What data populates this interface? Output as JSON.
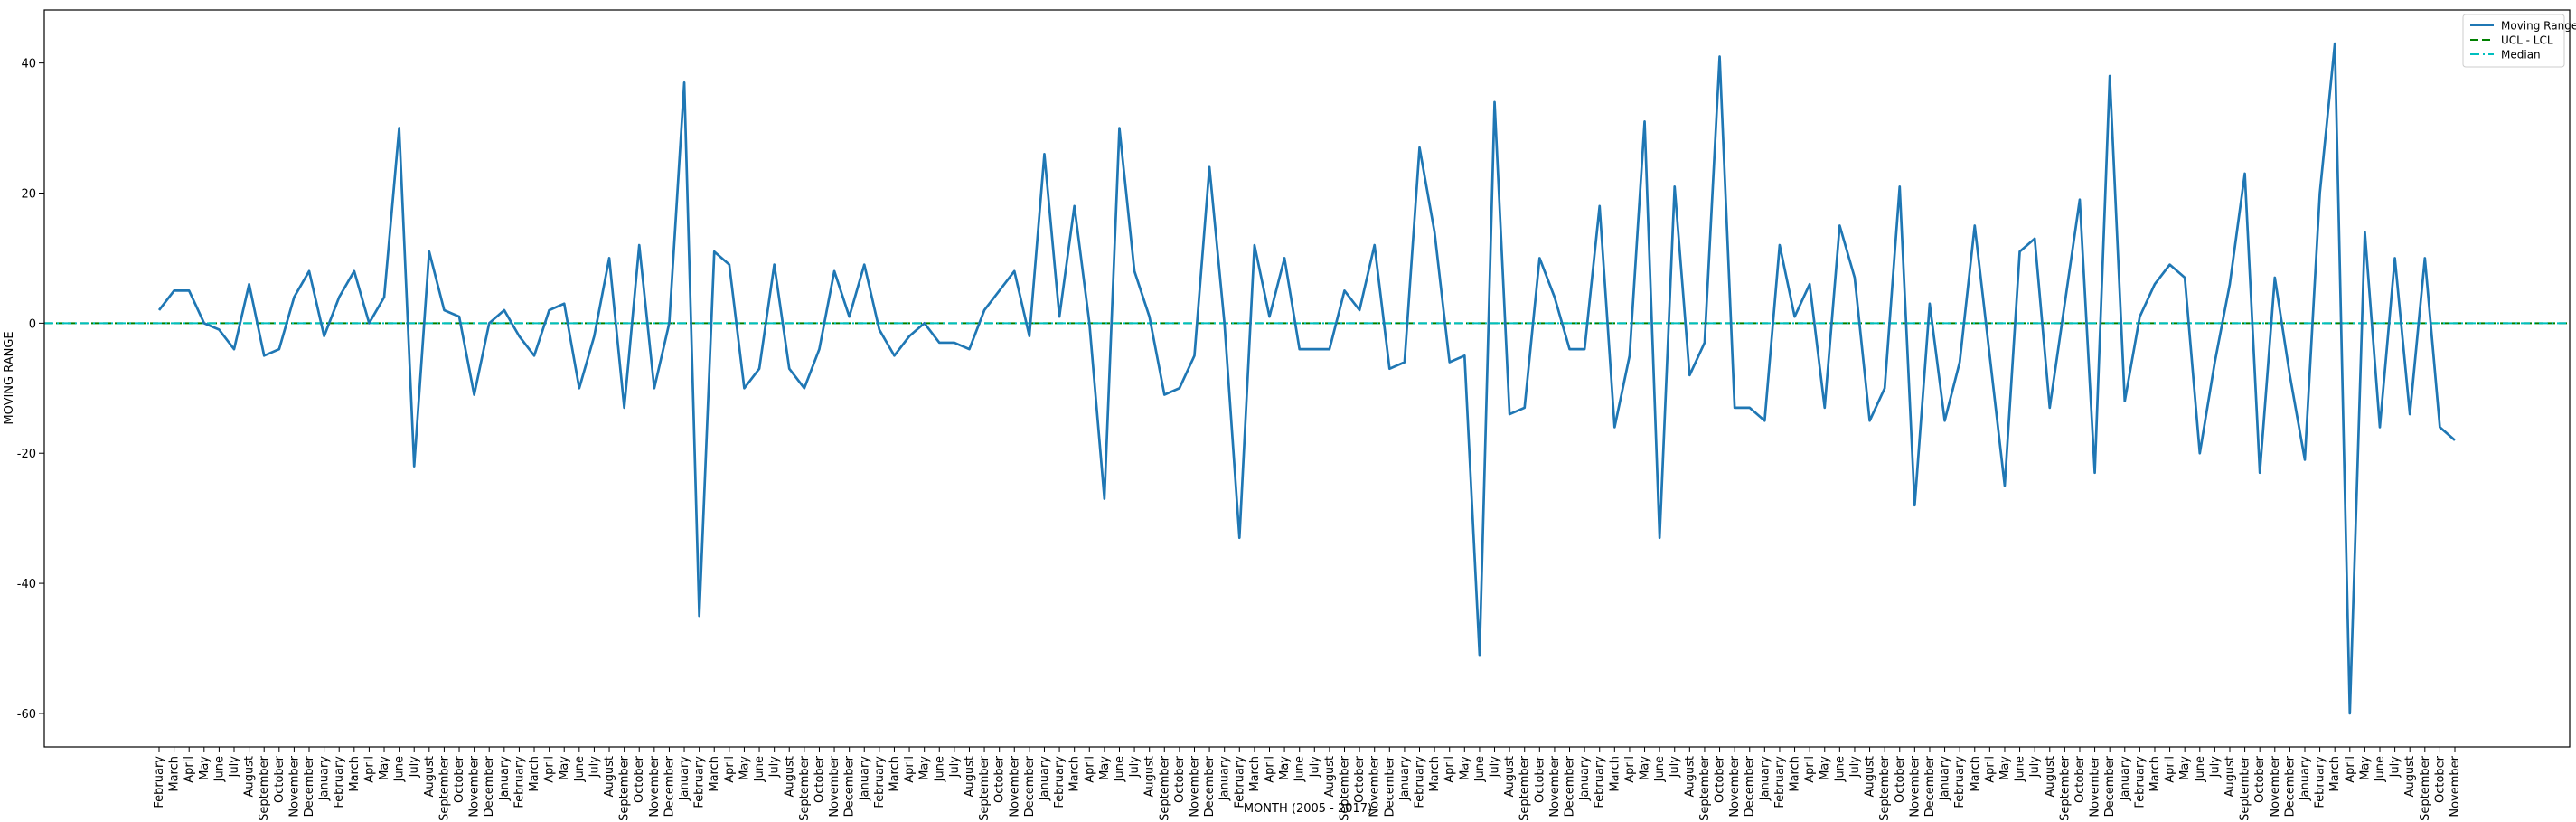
{
  "chart_data": {
    "type": "line",
    "x_label": "MONTH (2005 - 2017)",
    "y_label": "MOVING RANGE",
    "categories": [
      "February",
      "March",
      "April",
      "May",
      "June",
      "July",
      "August",
      "September",
      "October",
      "November",
      "December",
      "January",
      "February",
      "March",
      "April",
      "May",
      "June",
      "July",
      "August",
      "September",
      "October",
      "November",
      "December",
      "January",
      "February",
      "March",
      "April",
      "May",
      "June",
      "July",
      "August",
      "September",
      "October",
      "November",
      "December",
      "January",
      "February",
      "March",
      "April",
      "May",
      "June",
      "July",
      "August",
      "September",
      "October",
      "November",
      "December",
      "January",
      "February",
      "March",
      "April",
      "May",
      "June",
      "July",
      "August",
      "September",
      "October",
      "November",
      "December",
      "January",
      "February",
      "March",
      "April",
      "May",
      "June",
      "July",
      "August",
      "September",
      "October",
      "November",
      "December",
      "January",
      "February",
      "March",
      "April",
      "May",
      "June",
      "July",
      "August",
      "September",
      "October",
      "November",
      "December",
      "January",
      "February",
      "March",
      "April",
      "May",
      "June",
      "July",
      "August",
      "September",
      "October",
      "November",
      "December",
      "January",
      "February",
      "March",
      "April",
      "May",
      "June",
      "July",
      "August",
      "September",
      "October",
      "November",
      "December",
      "January",
      "February",
      "March",
      "April",
      "May",
      "June",
      "July",
      "August",
      "September",
      "October",
      "November",
      "December",
      "January",
      "February",
      "March",
      "April",
      "May",
      "June",
      "July",
      "August",
      "September",
      "October",
      "November",
      "December",
      "January",
      "February",
      "March",
      "April",
      "May",
      "June",
      "July",
      "August",
      "September",
      "October",
      "November",
      "December",
      "January",
      "February",
      "March",
      "April",
      "May",
      "June",
      "July",
      "August",
      "September",
      "October",
      "November"
    ],
    "series": [
      {
        "name": "Moving Range",
        "color": "#1f77b4",
        "values": [
          2,
          5,
          5,
          0,
          -1,
          -4,
          6,
          -5,
          -4,
          4,
          8,
          -2,
          4,
          8,
          0,
          4,
          30,
          -22,
          11,
          2,
          1,
          -11,
          0,
          2,
          -2,
          -5,
          2,
          3,
          -10,
          -2,
          10,
          -13,
          12,
          -10,
          0,
          37,
          -45,
          11,
          9,
          -10,
          -7,
          9,
          -7,
          -10,
          -4,
          8,
          1,
          9,
          -1,
          -5,
          -2,
          0,
          -3,
          -3,
          -4,
          2,
          5,
          8,
          -2,
          26,
          1,
          18,
          0,
          -27,
          30,
          8,
          1,
          -11,
          -10,
          -5,
          24,
          0,
          -33,
          12,
          1,
          10,
          -4,
          -4,
          -4,
          5,
          2,
          12,
          -7,
          -6,
          27,
          14,
          -6,
          -5,
          -51,
          34,
          -14,
          -13,
          10,
          4,
          -4,
          -4,
          18,
          -16,
          -5,
          31,
          -33,
          21,
          -8,
          -3,
          41,
          -13,
          -13,
          -15,
          12,
          1,
          6,
          -13,
          15,
          7,
          -15,
          -10,
          21,
          -28,
          3,
          -15,
          -6,
          15,
          -5,
          -25,
          11,
          13,
          -13,
          3,
          19,
          -23,
          38,
          -12,
          1,
          6,
          9,
          7,
          -20,
          -6,
          6,
          23,
          -23,
          7,
          -8,
          -21,
          20,
          43,
          -60,
          14,
          -16,
          10,
          -14,
          10,
          -16,
          -18
        ]
      }
    ],
    "reference_lines": [
      {
        "name": "UCL - LCL",
        "value": 0,
        "color": "#008000",
        "style": "dashed"
      },
      {
        "name": "Median",
        "value": 0,
        "color": "#00bfbf",
        "style": "dashdot"
      }
    ],
    "ylim": [
      -65.15,
      48.15
    ],
    "yticks": [
      -60,
      -40,
      -20,
      0,
      20,
      40
    ],
    "legend": "upper right"
  }
}
